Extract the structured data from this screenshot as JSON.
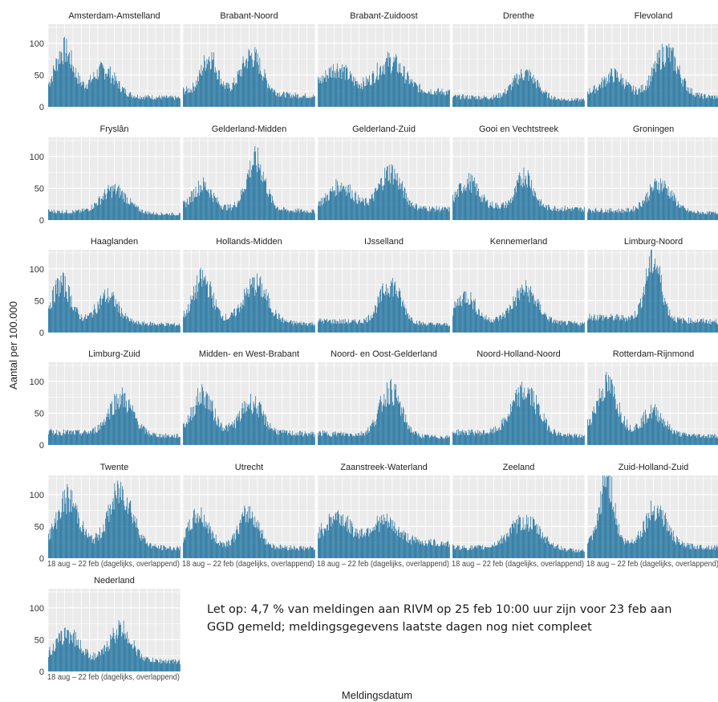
{
  "chart_data": {
    "type": "bar",
    "facet": true,
    "ylabel": "Aantal per 100.000",
    "xlabel": "Meldingsdatum",
    "ylim": [
      0,
      130
    ],
    "yticks": [
      0,
      50,
      100
    ],
    "xtick_labels_overlapping": "18 aug – 22 feb (dagelijks, overlappend)",
    "bar_color": "#1a6e9c",
    "panel_bg": "#ebebeb",
    "grid_color": "#ffffff",
    "day_count": 190,
    "panels": [
      {
        "name": "Amsterdam-Amstelland",
        "peaks": [
          [
            0.12,
            90,
            0.07
          ],
          [
            0.42,
            60,
            0.09
          ]
        ],
        "base": 18
      },
      {
        "name": "Brabant-Noord",
        "peaks": [
          [
            0.2,
            80,
            0.06
          ],
          [
            0.52,
            84,
            0.08
          ]
        ],
        "base": 22
      },
      {
        "name": "Brabant-Zuidoost",
        "peaks": [
          [
            0.15,
            60,
            0.08
          ],
          [
            0.55,
            75,
            0.1
          ]
        ],
        "base": 30
      },
      {
        "name": "Drenthe",
        "peaks": [
          [
            0.55,
            55,
            0.09
          ]
        ],
        "base": 14
      },
      {
        "name": "Flevoland",
        "peaks": [
          [
            0.2,
            50,
            0.08
          ],
          [
            0.6,
            90,
            0.09
          ]
        ],
        "base": 20
      },
      {
        "name": "Fryslân",
        "peaks": [
          [
            0.5,
            50,
            0.1
          ]
        ],
        "base": 12
      },
      {
        "name": "Gelderland-Midden",
        "peaks": [
          [
            0.15,
            55,
            0.07
          ],
          [
            0.55,
            98,
            0.07
          ]
        ],
        "base": 18
      },
      {
        "name": "Gelderland-Zuid",
        "peaks": [
          [
            0.18,
            55,
            0.08
          ],
          [
            0.55,
            80,
            0.08
          ]
        ],
        "base": 22
      },
      {
        "name": "Gooi en Vechtstreek",
        "peaks": [
          [
            0.12,
            60,
            0.07
          ],
          [
            0.55,
            75,
            0.06
          ]
        ],
        "base": 22
      },
      {
        "name": "Groningen",
        "peaks": [
          [
            0.55,
            60,
            0.09
          ]
        ],
        "base": 14
      },
      {
        "name": "Haaglanden",
        "peaks": [
          [
            0.1,
            78,
            0.07
          ],
          [
            0.45,
            60,
            0.08
          ]
        ],
        "base": 16
      },
      {
        "name": "Hollands-Midden",
        "peaks": [
          [
            0.15,
            85,
            0.07
          ],
          [
            0.55,
            80,
            0.09
          ]
        ],
        "base": 18
      },
      {
        "name": "IJsselland",
        "peaks": [
          [
            0.55,
            80,
            0.08
          ]
        ],
        "base": 16
      },
      {
        "name": "Kennemerland",
        "peaks": [
          [
            0.1,
            58,
            0.07
          ],
          [
            0.55,
            70,
            0.09
          ]
        ],
        "base": 18
      },
      {
        "name": "Limburg-Noord",
        "peaks": [
          [
            0.5,
            120,
            0.06
          ]
        ],
        "base": 22
      },
      {
        "name": "Limburg-Zuid",
        "peaks": [
          [
            0.55,
            78,
            0.09
          ]
        ],
        "base": 18
      },
      {
        "name": "Midden- en West-Brabant",
        "peaks": [
          [
            0.15,
            80,
            0.07
          ],
          [
            0.52,
            70,
            0.08
          ]
        ],
        "base": 22
      },
      {
        "name": "Noord- en Oost-Gelderland",
        "peaks": [
          [
            0.55,
            90,
            0.08
          ]
        ],
        "base": 16
      },
      {
        "name": "Noord-Holland-Noord",
        "peaks": [
          [
            0.55,
            88,
            0.1
          ]
        ],
        "base": 18
      },
      {
        "name": "Rotterdam-Rijnmond",
        "peaks": [
          [
            0.15,
            95,
            0.08
          ],
          [
            0.5,
            55,
            0.08
          ]
        ],
        "base": 18
      },
      {
        "name": "Twente",
        "peaks": [
          [
            0.15,
            95,
            0.08
          ],
          [
            0.55,
            110,
            0.09
          ]
        ],
        "base": 20
      },
      {
        "name": "Utrecht",
        "peaks": [
          [
            0.12,
            68,
            0.07
          ],
          [
            0.5,
            75,
            0.07
          ]
        ],
        "base": 20
      },
      {
        "name": "Zaanstreek-Waterland",
        "peaks": [
          [
            0.15,
            65,
            0.08
          ],
          [
            0.5,
            60,
            0.1
          ]
        ],
        "base": 30
      },
      {
        "name": "Zeeland",
        "peaks": [
          [
            0.55,
            60,
            0.12
          ]
        ],
        "base": 15
      },
      {
        "name": "Zuid-Holland-Zuid",
        "peaks": [
          [
            0.15,
            130,
            0.05
          ],
          [
            0.52,
            82,
            0.08
          ]
        ],
        "base": 22
      },
      {
        "name": "Nederland",
        "peaks": [
          [
            0.15,
            60,
            0.08
          ],
          [
            0.55,
            70,
            0.08
          ]
        ],
        "base": 20
      }
    ]
  },
  "note": {
    "line1": "Let op: 4,7 % van meldingen aan RIVM op 25 feb 10:00 uur zijn voor 23 feb aan",
    "line2": "GGD gemeld; meldingsgegevens laatste dagen  nog niet compleet"
  }
}
